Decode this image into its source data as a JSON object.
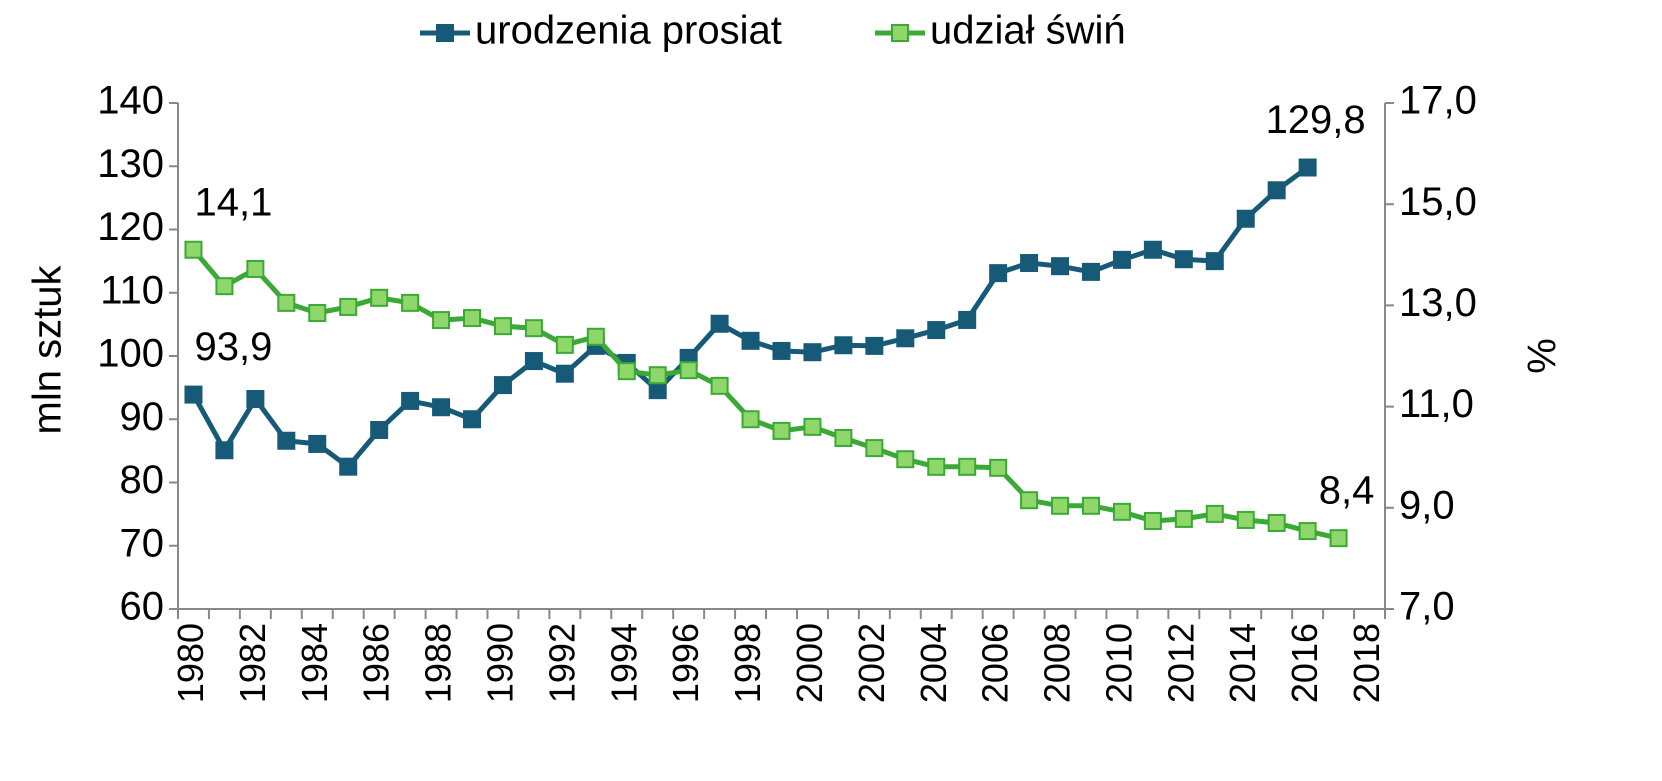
{
  "chart_data": {
    "type": "line",
    "y_label": "mln sztuk",
    "y2_label": "%",
    "categories": [
      "1980",
      null,
      "1982",
      null,
      "1984",
      null,
      "1986",
      null,
      "1988",
      null,
      "1990",
      null,
      "1992",
      null,
      "1994",
      null,
      "1996",
      null,
      "1998",
      null,
      "2000",
      null,
      "2002",
      null,
      "2004",
      null,
      "2006",
      null,
      "2008",
      null,
      "2010",
      null,
      "2012",
      null,
      "2014",
      null,
      "2016",
      null,
      "2018"
    ],
    "series": [
      {
        "name": "urodzenia prosiat",
        "color": "#175a78",
        "marker_fill": "#175a78",
        "values": [
          93.9,
          85.1,
          93.2,
          86.6,
          86.1,
          82.5,
          88.3,
          92.9,
          91.9,
          90.0,
          95.4,
          99.2,
          97.2,
          101.6,
          98.9,
          94.6,
          99.7,
          105.1,
          102.4,
          100.8,
          100.6,
          101.7,
          101.6,
          102.8,
          104.1,
          105.7,
          113.1,
          114.7,
          114.2,
          113.3,
          115.2,
          116.8,
          115.3,
          115.0,
          121.7,
          126.2,
          129.8,
          null,
          null
        ],
        "value_labels": [
          "93,9",
          null,
          null,
          null,
          null,
          null,
          null,
          null,
          null,
          null,
          null,
          null,
          null,
          null,
          null,
          null,
          null,
          null,
          null,
          null,
          null,
          null,
          null,
          null,
          null,
          null,
          null,
          null,
          null,
          null,
          null,
          null,
          null,
          null,
          null,
          null,
          "129,8",
          null,
          null
        ]
      },
      {
        "name": "udział świń",
        "color": "#3aa935",
        "marker_fill": "#8fd66b",
        "axis": "y2",
        "values": [
          14.1,
          13.38,
          13.72,
          13.05,
          12.85,
          12.97,
          13.15,
          13.05,
          12.71,
          12.75,
          12.59,
          12.55,
          12.22,
          12.38,
          11.7,
          11.62,
          11.72,
          11.41,
          10.75,
          10.52,
          10.6,
          10.38,
          10.18,
          9.96,
          9.81,
          9.81,
          9.79,
          9.15,
          9.04,
          9.04,
          8.92,
          8.74,
          8.78,
          8.88,
          8.76,
          8.7,
          8.54,
          8.4,
          null
        ],
        "value_labels": [
          "14,1",
          null,
          null,
          null,
          null,
          null,
          null,
          null,
          null,
          null,
          null,
          null,
          null,
          null,
          null,
          null,
          null,
          null,
          null,
          null,
          null,
          null,
          null,
          null,
          null,
          null,
          null,
          null,
          null,
          null,
          null,
          null,
          null,
          null,
          null,
          null,
          null,
          "8,4",
          null
        ]
      }
    ],
    "ylim": [
      60,
      140
    ],
    "yticks": [
      60,
      70,
      80,
      90,
      100,
      110,
      120,
      130,
      140
    ],
    "y2lim": [
      7,
      17
    ],
    "y2ticks": [
      {
        "value": 7,
        "label": "7,0"
      },
      {
        "value": 9,
        "label": "9,0"
      },
      {
        "value": 11,
        "label": "11,0"
      },
      {
        "value": 13,
        "label": "13,0"
      },
      {
        "value": 15,
        "label": "15,0"
      },
      {
        "value": 17,
        "label": "17,0"
      }
    ],
    "legend": "top"
  }
}
